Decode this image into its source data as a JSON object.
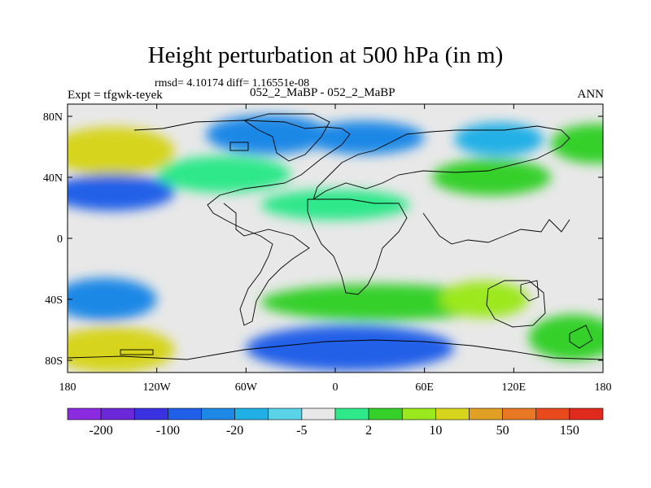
{
  "title": "Height perturbation at 500 hPa (in m)",
  "stats": "rmsd= 4.10174 diff= 1.16551e-08",
  "expt": "Expt = tfgwk-teyek",
  "case": "052_2_MaBP - 052_2_MaBP",
  "season": "ANN",
  "lat_ticks": [
    {
      "lat": 80,
      "label": "80N"
    },
    {
      "lat": 40,
      "label": "40N"
    },
    {
      "lat": 0,
      "label": "0"
    },
    {
      "lat": -40,
      "label": "40S"
    },
    {
      "lat": -80,
      "label": "80S"
    }
  ],
  "lon_ticks": [
    {
      "lon": -180,
      "label": "180"
    },
    {
      "lon": -120,
      "label": "120W"
    },
    {
      "lon": -60,
      "label": "60W"
    },
    {
      "lon": 0,
      "label": "0"
    },
    {
      "lon": 60,
      "label": "60E"
    },
    {
      "lon": 120,
      "label": "120E"
    },
    {
      "lon": 180,
      "label": "180"
    }
  ],
  "colorbar": {
    "colors": [
      "#8a2be2",
      "#6a28d8",
      "#3a32e0",
      "#2060e8",
      "#1e88e6",
      "#20b0e6",
      "#5ad2e8",
      "#e8e8e8",
      "#2ee88a",
      "#36d02a",
      "#9ce81e",
      "#d6d41c",
      "#e0a024",
      "#e87824",
      "#e84a1e",
      "#e02a1e"
    ],
    "labels": [
      {
        "after_box": 1,
        "text": "-200"
      },
      {
        "after_box": 3,
        "text": "-100"
      },
      {
        "after_box": 5,
        "text": "-20"
      },
      {
        "after_box": 7,
        "text": "-5"
      },
      {
        "after_box": 9,
        "text": "2"
      },
      {
        "after_box": 11,
        "text": "10"
      },
      {
        "after_box": 13,
        "text": "50"
      },
      {
        "after_box": 15,
        "text": "150"
      }
    ]
  },
  "fields": [
    {
      "lon": -150,
      "lat": 57,
      "r_lon": 42,
      "r_lat": 16,
      "level": 4
    },
    {
      "lon": -150,
      "lat": 30,
      "r_lon": 42,
      "r_lat": 12,
      "level": -4
    },
    {
      "lon": -45,
      "lat": 68,
      "r_lon": 42,
      "r_lat": 13,
      "level": -3
    },
    {
      "lon": 20,
      "lat": 66,
      "r_lon": 40,
      "r_lat": 11,
      "level": -3
    },
    {
      "lon": -75,
      "lat": 42,
      "r_lon": 45,
      "r_lat": 12,
      "level": 1
    },
    {
      "lon": 0,
      "lat": 22,
      "r_lon": 50,
      "r_lat": 10,
      "level": 1
    },
    {
      "lon": 105,
      "lat": 40,
      "r_lon": 40,
      "r_lat": 12,
      "level": 2
    },
    {
      "lon": 110,
      "lat": 65,
      "r_lon": 30,
      "r_lat": 11,
      "level": -2
    },
    {
      "lon": 175,
      "lat": 62,
      "r_lon": 30,
      "r_lat": 13,
      "level": 2
    },
    {
      "lon": -155,
      "lat": -40,
      "r_lon": 35,
      "r_lat": 14,
      "level": -3
    },
    {
      "lon": -150,
      "lat": -73,
      "r_lon": 42,
      "r_lat": 15,
      "level": 4
    },
    {
      "lon": 30,
      "lat": -42,
      "r_lon": 80,
      "r_lat": 12,
      "level": 2
    },
    {
      "lon": 10,
      "lat": -72,
      "r_lon": 70,
      "r_lat": 15,
      "level": -4
    },
    {
      "lon": 100,
      "lat": -40,
      "r_lon": 30,
      "r_lat": 12,
      "level": 3
    },
    {
      "lon": 160,
      "lat": -65,
      "r_lon": 30,
      "r_lat": 15,
      "level": 2
    }
  ]
}
